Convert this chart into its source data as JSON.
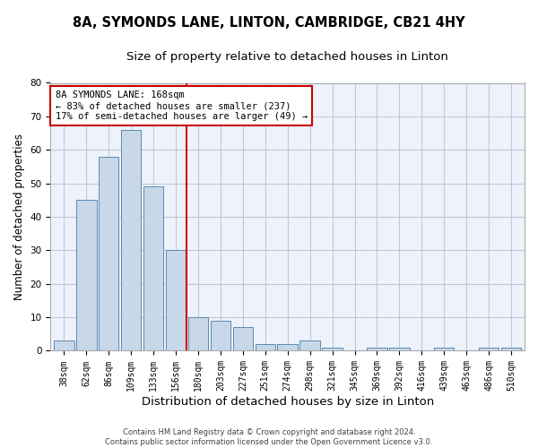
{
  "title_line1": "8A, SYMONDS LANE, LINTON, CAMBRIDGE, CB21 4HY",
  "title_line2": "Size of property relative to detached houses in Linton",
  "xlabel": "Distribution of detached houses by size in Linton",
  "ylabel": "Number of detached properties",
  "bar_labels": [
    "38sqm",
    "62sqm",
    "86sqm",
    "109sqm",
    "133sqm",
    "156sqm",
    "180sqm",
    "203sqm",
    "227sqm",
    "251sqm",
    "274sqm",
    "298sqm",
    "321sqm",
    "345sqm",
    "369sqm",
    "392sqm",
    "416sqm",
    "439sqm",
    "463sqm",
    "486sqm",
    "510sqm"
  ],
  "bar_values": [
    3,
    45,
    58,
    66,
    49,
    30,
    10,
    9,
    7,
    2,
    2,
    3,
    1,
    0,
    1,
    1,
    0,
    1,
    0,
    1,
    1
  ],
  "bar_color": "#c8d8e8",
  "bar_edge_color": "#5a8ab0",
  "ylim": [
    0,
    80
  ],
  "yticks": [
    0,
    10,
    20,
    30,
    40,
    50,
    60,
    70,
    80
  ],
  "red_line_color": "#cc0000",
  "annotation_line1": "8A SYMONDS LANE: 168sqm",
  "annotation_line2": "← 83% of detached houses are smaller (237)",
  "annotation_line3": "17% of semi-detached houses are larger (49) →",
  "annotation_box_color": "#ffffff",
  "annotation_border_color": "#cc0000",
  "footer_line1": "Contains HM Land Registry data © Crown copyright and database right 2024.",
  "footer_line2": "Contains public sector information licensed under the Open Government Licence v3.0.",
  "background_color": "#eef2fb",
  "grid_color": "#c0c8d8",
  "title_fontsize": 10.5,
  "subtitle_fontsize": 9.5,
  "tick_fontsize": 7,
  "ylabel_fontsize": 8.5,
  "xlabel_fontsize": 9.5,
  "footer_fontsize": 6,
  "annotation_fontsize": 7.5
}
